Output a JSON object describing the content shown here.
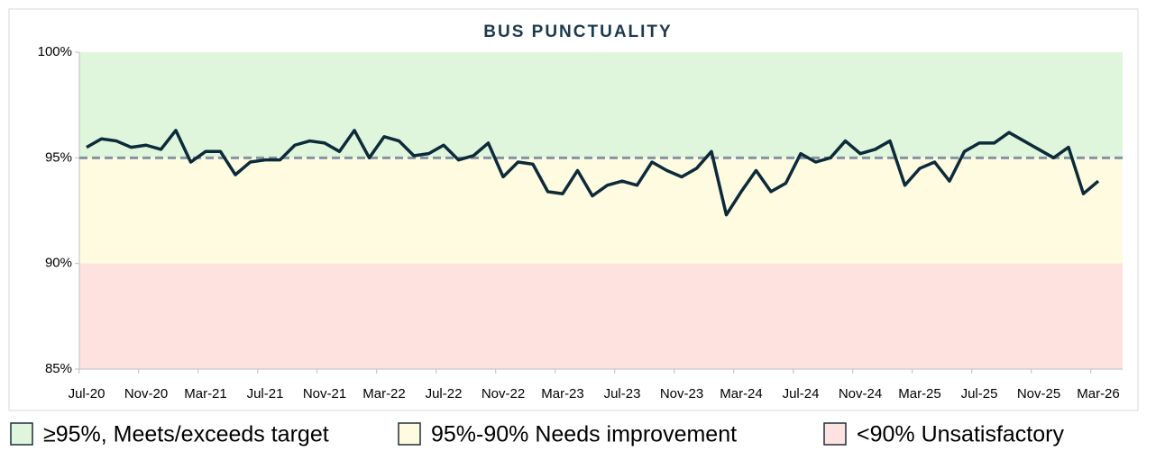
{
  "chart_data": {
    "type": "line",
    "title": "BUS PUNCTUALITY",
    "categories": [
      "Jul-20",
      null,
      null,
      null,
      "Nov-20",
      null,
      null,
      null,
      "Mar-21",
      null,
      null,
      null,
      "Jul-21",
      null,
      null,
      null,
      "Nov-21",
      null,
      null,
      null,
      "Mar-22",
      null,
      null,
      null,
      "Jul-22",
      null,
      null,
      null,
      "Nov-22",
      null,
      null,
      null,
      "Mar-23",
      null,
      null,
      null,
      "Jul-23",
      null,
      null,
      null,
      "Nov-23",
      null,
      null,
      null,
      "Mar-24",
      null,
      null,
      null,
      "Jul-24",
      null,
      null,
      null,
      "Nov-24",
      null,
      null,
      null,
      "Mar-25",
      null,
      null,
      null,
      "Jul-25",
      null,
      null,
      null,
      "Nov-25",
      null,
      null,
      null,
      "Mar-26"
    ],
    "series": [
      {
        "color": "#0d2a3a",
        "values": [
          95.5,
          95.9,
          95.8,
          95.5,
          95.6,
          95.4,
          96.3,
          94.8,
          95.3,
          95.3,
          94.2,
          94.8,
          94.9,
          94.9,
          95.6,
          95.8,
          95.7,
          95.3,
          96.3,
          95.0,
          96.0,
          95.8,
          95.1,
          95.2,
          95.6,
          94.9,
          95.1,
          95.7,
          94.1,
          94.8,
          94.7,
          93.4,
          93.3,
          94.4,
          93.2,
          93.7,
          93.9,
          93.7,
          94.8,
          94.4,
          94.1,
          94.5,
          95.3,
          92.3,
          93.4,
          94.4,
          93.4,
          93.8,
          95.2,
          94.8,
          95.0,
          95.8,
          95.2,
          95.4,
          95.8,
          93.7,
          94.5,
          94.8,
          93.9,
          95.3,
          95.7,
          95.7,
          96.2,
          95.8,
          95.4,
          95.0,
          95.5,
          93.3,
          93.9
        ]
      }
    ],
    "ylim": [
      85,
      100
    ],
    "yticks": [
      {
        "value": 85,
        "label": "85%"
      },
      {
        "value": 90,
        "label": "90%"
      },
      {
        "value": 95,
        "label": "95%"
      },
      {
        "value": 100,
        "label": "100%"
      }
    ],
    "target": 95,
    "target_color": "#8494a3",
    "bands": [
      {
        "from": 95,
        "to": 100,
        "color": "#dff5dc",
        "label": "≥95%, Meets/exceeds target"
      },
      {
        "from": 90,
        "to": 95,
        "color": "#fefbe0",
        "label": "95%-90% Needs improvement"
      },
      {
        "from": 85,
        "to": 90,
        "color": "#fde2e0",
        "label": "<90% Unsatisfactory"
      }
    ]
  }
}
